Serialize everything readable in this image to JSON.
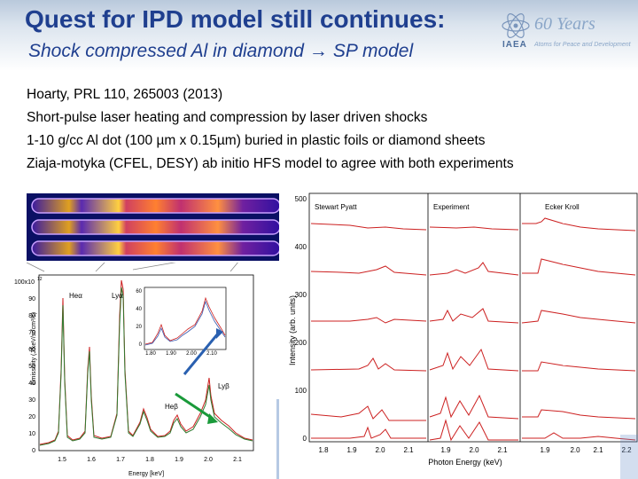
{
  "slide": {
    "title": "Quest for IPD model still continues:",
    "subtitle_pre": "Shock compressed Al in diamond",
    "subtitle_arrow": "→",
    "subtitle_post": "SP model"
  },
  "logo": {
    "years": "60 Years",
    "org": "IAEA",
    "tagline": "Atoms for Peace and Development"
  },
  "body": [
    "Hoarty, PRL 110, 265003 (2013)",
    "Short-pulse laser heating and compression by laser driven shocks",
    "1-10 g/cc Al  dot (100 µm x 0.15µm)  buried in plastic foils or diamond sheets",
    "Ziaja-motyka (CFEL, DESY) ab initio HFS model  to agree with both experiments"
  ],
  "spectrum_figure": {
    "ylabel": "Emissivity (J/keV/sr/cm³/s)",
    "xlabel": "Energy [keV]",
    "scale_label": "100x10",
    "scale_exp": "12",
    "yticks": [
      "90",
      "80",
      "70",
      "60",
      "50",
      "40",
      "30",
      "20",
      "10",
      "0"
    ],
    "xticks": [
      "1.5",
      "1.6",
      "1.7",
      "1.8",
      "1.9",
      "2.0",
      "2.1"
    ],
    "labels": {
      "he_a": "Heα",
      "ly_a": "Lyα",
      "he_b": "Heβ",
      "ly_b": "Lyβ"
    },
    "inset": {
      "yticks": [
        "60",
        "40",
        "20",
        "0"
      ],
      "xticks": [
        "1.80",
        "1.90",
        "2.00",
        "2.10"
      ]
    }
  },
  "panel_figure": {
    "ylabel": "Intensity (arb. units)",
    "xlabel": "Photon Energy (keV)",
    "panel_titles": [
      "Stewart Pyatt",
      "Experiment",
      "Ecker Kroll"
    ],
    "yticks": [
      "500",
      "400",
      "300",
      "200",
      "100",
      "0"
    ],
    "xticks_left": [
      "1.8",
      "1.9",
      "2.0",
      "2.1"
    ],
    "xticks_mid": [
      "1.9",
      "2.0",
      "2.1"
    ],
    "xticks_right": [
      "1.9",
      "2.0",
      "2.1",
      "2.2"
    ]
  }
}
